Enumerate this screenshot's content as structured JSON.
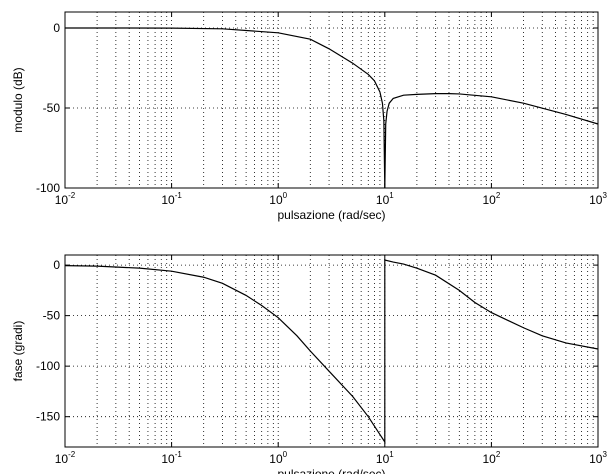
{
  "chart_data": [
    {
      "type": "line",
      "xscale": "log",
      "xlim": [
        0.01,
        1000
      ],
      "ylim": [
        -100,
        10
      ],
      "xlabel": "pulsazione (rad/sec)",
      "ylabel": "modulo (dB)",
      "xticks": [
        {
          "base": "10",
          "exp": "-2"
        },
        {
          "base": "10",
          "exp": "-1"
        },
        {
          "base": "10",
          "exp": "0"
        },
        {
          "base": "10",
          "exp": "1"
        },
        {
          "base": "10",
          "exp": "2"
        },
        {
          "base": "10",
          "exp": "3"
        }
      ],
      "yticks": [
        0,
        -50,
        -100
      ],
      "grid": true,
      "series": [
        {
          "x": [
            0.01,
            0.03,
            0.1,
            0.3,
            1,
            2,
            3,
            5,
            7,
            8,
            9,
            9.5,
            9.8,
            10,
            10.2,
            10.5,
            11,
            12,
            15,
            20,
            30,
            40,
            50,
            100,
            200,
            500,
            1000
          ],
          "values": [
            0,
            0,
            -0.1,
            -0.5,
            -3,
            -7,
            -13,
            -22,
            -29,
            -33,
            -40,
            -47,
            -58,
            -100,
            -60,
            -52,
            -47,
            -44,
            -42,
            -41.5,
            -41,
            -41,
            -41.2,
            -43,
            -47,
            -54,
            -60
          ]
        }
      ]
    },
    {
      "type": "line",
      "xscale": "log",
      "xlim": [
        0.01,
        1000
      ],
      "ylim": [
        -180,
        10
      ],
      "xlabel": "pulsazione (rad/sec)",
      "ylabel": "fase (gradi)",
      "xticks": [
        {
          "base": "10",
          "exp": "-2"
        },
        {
          "base": "10",
          "exp": "-1"
        },
        {
          "base": "10",
          "exp": "0"
        },
        {
          "base": "10",
          "exp": "1"
        },
        {
          "base": "10",
          "exp": "2"
        },
        {
          "base": "10",
          "exp": "3"
        }
      ],
      "yticks": [
        0,
        -50,
        -100,
        -150
      ],
      "grid": true,
      "series": [
        {
          "x": [
            0.01,
            0.02,
            0.05,
            0.1,
            0.2,
            0.3,
            0.5,
            0.7,
            1,
            1.5,
            2,
            3,
            5,
            7,
            10,
            10,
            12,
            15,
            20,
            30,
            50,
            70,
            100,
            200,
            300,
            500,
            1000
          ],
          "values": [
            -0.5,
            -1,
            -3,
            -6,
            -12,
            -18,
            -30,
            -40,
            -52,
            -70,
            -85,
            -105,
            -130,
            -150,
            -175,
            5,
            3,
            1,
            -3,
            -10,
            -25,
            -37,
            -47,
            -62,
            -70,
            -77,
            -83
          ]
        }
      ]
    }
  ]
}
